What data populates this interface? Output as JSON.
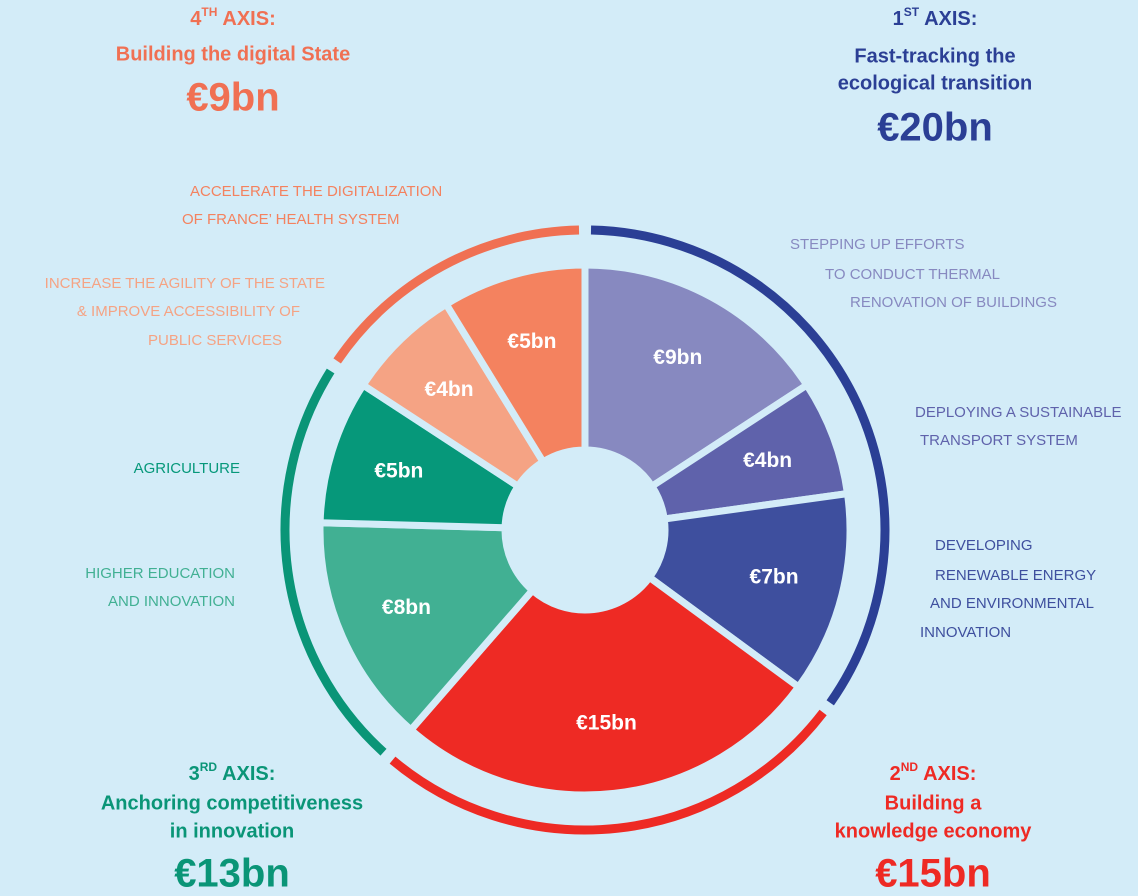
{
  "chart_data": {
    "type": "donut",
    "axes": [
      {
        "ordinal": "1",
        "suffix": "ST",
        "label": "AXIS:",
        "title": [
          "Fast-tracking the",
          "ecological transition"
        ],
        "total": 20,
        "total_label": "€20bn",
        "color": "#2b3f95",
        "segments": [
          {
            "label": [
              "STEPPING UP EFFORTS",
              "TO CONDUCT THERMAL",
              "RENOVATION OF BUILDINGS"
            ],
            "value": 9,
            "value_label": "€9bn",
            "color": "#8789c0"
          },
          {
            "label": [
              "DEPLOYING A SUSTAINABLE",
              "TRANSPORT SYSTEM"
            ],
            "value": 4,
            "value_label": "€4bn",
            "color": "#5f62ab"
          },
          {
            "label": [
              "DEVELOPING",
              "RENEWABLE ENERGY",
              "AND ENVIRONMENTAL",
              "INNOVATION"
            ],
            "value": 7,
            "value_label": "€7bn",
            "color": "#3e4f9e"
          }
        ]
      },
      {
        "ordinal": "2",
        "suffix": "ND",
        "label": "AXIS:",
        "title": [
          "Building a",
          "knowledge economy"
        ],
        "total": 15,
        "total_label": "€15bn",
        "color": "#ee2a24",
        "segments": [
          {
            "value": 15,
            "value_label": "€15bn",
            "color": "#ee2a24"
          }
        ]
      },
      {
        "ordinal": "3",
        "suffix": "RD",
        "label": "AXIS:",
        "title": [
          "Anchoring competitiveness",
          "in innovation"
        ],
        "total": 13,
        "total_label": "€13bn",
        "color": "#0a9577",
        "segments": [
          {
            "label": [
              "HIGHER EDUCATION",
              "AND INNOVATION"
            ],
            "value": 8,
            "value_label": "€8bn",
            "color": "#41b093"
          },
          {
            "label": [
              "AGRICULTURE"
            ],
            "value": 5,
            "value_label": "€5bn",
            "color": "#06987a"
          }
        ]
      },
      {
        "ordinal": "4",
        "suffix": "TH",
        "label": "AXIS:",
        "title": [
          "Building the digital State"
        ],
        "total": 9,
        "total_label": "€9bn",
        "color": "#f07053",
        "segments": [
          {
            "label": [
              "INCREASE THE AGILITY OF THE STATE",
              "& IMPROVE ACCESSIBILITY OF",
              "PUBLIC SERVICES"
            ],
            "value": 4,
            "value_label": "€4bn",
            "color": "#f5a384"
          },
          {
            "label": [
              "ACCELERATE THE DIGITALIZATION",
              "OF FRANCE’ HEALTH SYSTEM"
            ],
            "value": 5,
            "value_label": "€5bn",
            "color": "#f4825f"
          }
        ]
      }
    ]
  }
}
